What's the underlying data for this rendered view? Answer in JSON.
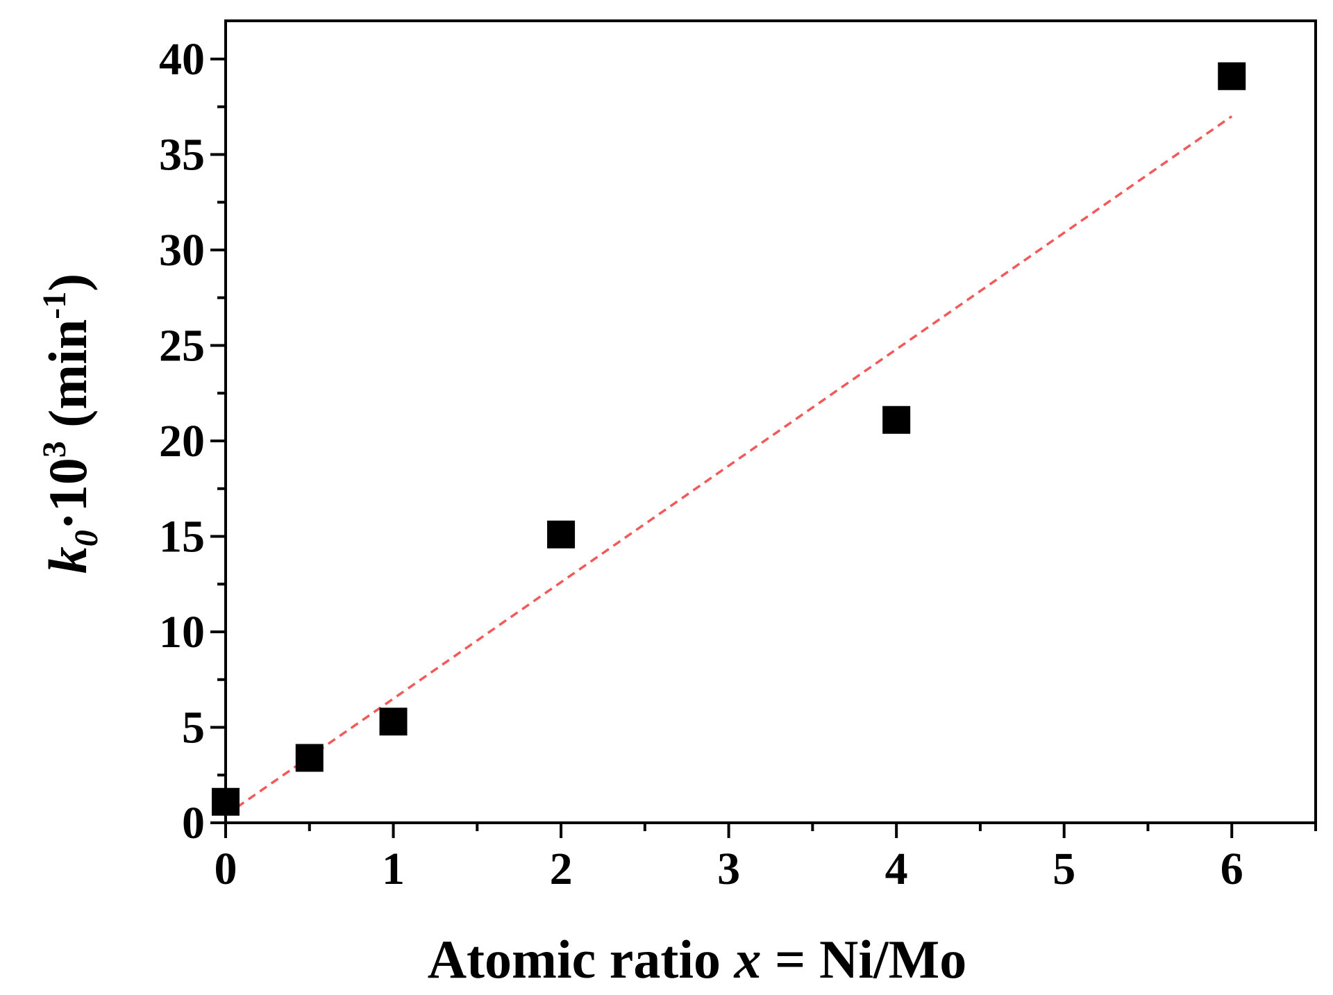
{
  "chart_data": {
    "type": "scatter",
    "xlabel": {
      "prefix": "Atomic ratio ",
      "var": "x",
      "suffix": " = Ni/Mo"
    },
    "ylabel": {
      "var": "k",
      "sub": "0",
      "mid": "·10",
      "sup": "3",
      "unit_open": " (min",
      "unit_sup": "-1",
      "unit_close": ")"
    },
    "xlim": [
      0,
      6.5
    ],
    "ylim": [
      0,
      42
    ],
    "xticks": [
      0,
      1,
      2,
      3,
      4,
      5,
      6
    ],
    "yticks": [
      0,
      5,
      10,
      15,
      20,
      25,
      30,
      35,
      40
    ],
    "x_minor_step": 0.5,
    "y_minor_step": 2.5,
    "points": [
      {
        "x": 0,
        "y": 1.1
      },
      {
        "x": 0.5,
        "y": 3.4
      },
      {
        "x": 1,
        "y": 5.3
      },
      {
        "x": 2,
        "y": 15.1
      },
      {
        "x": 4,
        "y": 21.1
      },
      {
        "x": 6,
        "y": 39.1
      }
    ],
    "fit_line": {
      "x0": 0,
      "y0": 0.4,
      "x1": 6,
      "y1": 37.0,
      "style": "dashed"
    },
    "colors": {
      "points": "#000000",
      "fit": "#f25a5a",
      "axes": "#000000"
    }
  }
}
